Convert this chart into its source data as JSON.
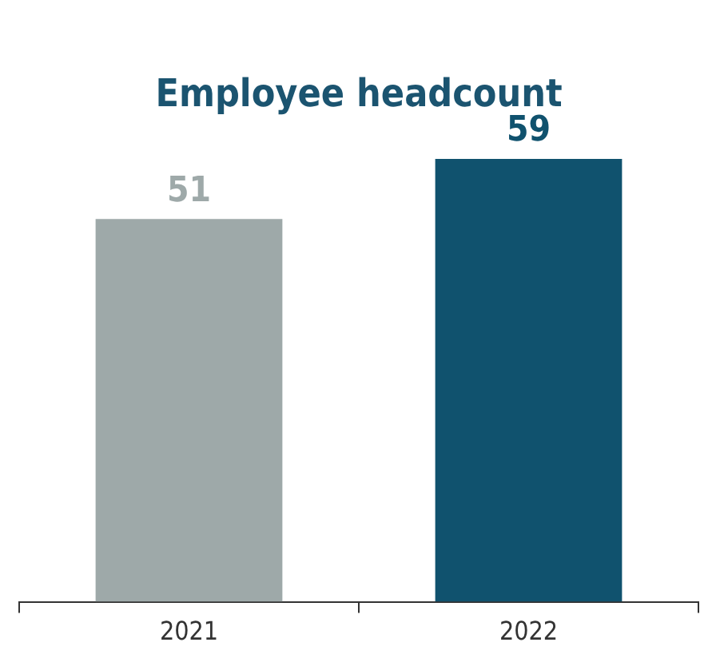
{
  "chart_data": {
    "type": "bar",
    "title": "Employee headcount",
    "categories": [
      "2021",
      "2022"
    ],
    "values": [
      51,
      59
    ],
    "colors": [
      "#9ea9a9",
      "#10526e"
    ],
    "data_labels": true,
    "grid": false,
    "legend": false
  }
}
